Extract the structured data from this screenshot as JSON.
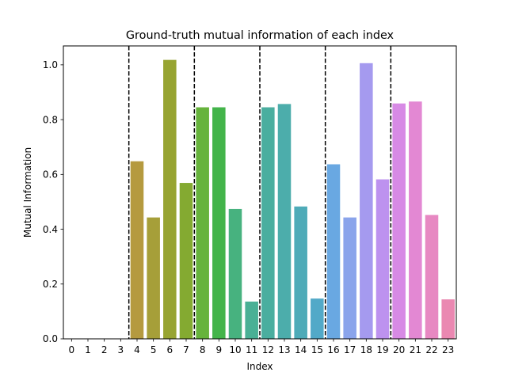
{
  "chart_data": {
    "type": "bar",
    "title": "Ground-truth mutual information of each index",
    "xlabel": "Index",
    "ylabel": "Mutual Information",
    "categories": [
      "0",
      "1",
      "2",
      "3",
      "4",
      "5",
      "6",
      "7",
      "8",
      "9",
      "10",
      "11",
      "12",
      "13",
      "14",
      "15",
      "16",
      "17",
      "18",
      "19",
      "20",
      "21",
      "22",
      "23"
    ],
    "values": [
      0,
      0,
      0,
      0,
      0.648,
      0.443,
      1.018,
      0.569,
      0.845,
      0.845,
      0.474,
      0.136,
      0.845,
      0.857,
      0.483,
      0.147,
      0.637,
      0.443,
      1.006,
      0.582,
      0.859,
      0.866,
      0.452,
      0.144
    ],
    "colors": [
      "#e8736b",
      "#de7e3f",
      "#cf8833",
      "#c1932f",
      "#b59a3f",
      "#a69f39",
      "#97a432",
      "#84aa31",
      "#66b33c",
      "#43b44a",
      "#47b27f",
      "#49b095",
      "#4aae9f",
      "#4cadab",
      "#4eabb8",
      "#52a9c8",
      "#69a8e2",
      "#8aa4eb",
      "#a59aef",
      "#bd92ef",
      "#d78ae5",
      "#e388d3",
      "#e788c2",
      "#ea88b1"
    ],
    "yticks": [
      "0.0",
      "0.2",
      "0.4",
      "0.6",
      "0.8",
      "1.0"
    ],
    "ytick_values": [
      0,
      0.2,
      0.4,
      0.6,
      0.8,
      1.0
    ],
    "ylim": [
      0,
      1.069
    ],
    "separators_after_index": [
      3,
      7,
      11,
      15,
      19
    ],
    "separator_style": "black dashed",
    "grid": false
  }
}
